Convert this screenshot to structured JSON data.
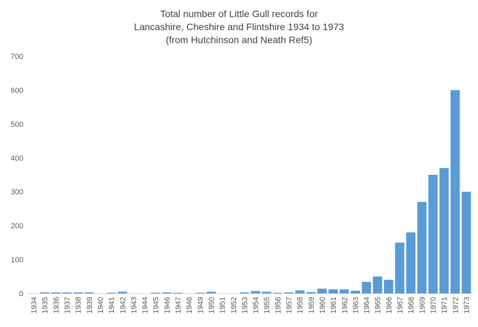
{
  "chart_data": {
    "type": "bar",
    "title_lines": [
      "Total number of Little Gull records for",
      "Lancashire, Cheshire and Flintshire 1934 to 1973",
      "(from Hutchinson and Neath Ref5)"
    ],
    "xlabel": "",
    "ylabel": "",
    "ylim": [
      0,
      700
    ],
    "yticks": [
      0,
      100,
      200,
      300,
      400,
      500,
      600,
      700
    ],
    "grid": false,
    "legend": "none",
    "bar_color": "#5b9bd5",
    "categories": [
      "1934",
      "1935",
      "1936",
      "1937",
      "1938",
      "1939",
      "1940",
      "1941",
      "1942",
      "1943",
      "1944",
      "1945",
      "1946",
      "1947",
      "1948",
      "1949",
      "1950",
      "1951",
      "1952",
      "1953",
      "1954",
      "1955",
      "1956",
      "1957",
      "1958",
      "1959",
      "1960",
      "1961",
      "1962",
      "1963",
      "1964",
      "1965",
      "1966",
      "1967",
      "1968",
      "1969",
      "1970",
      "1971",
      "1972",
      "1973"
    ],
    "values": [
      0,
      3,
      3,
      3,
      3,
      3,
      0,
      2,
      5,
      0,
      0,
      2,
      3,
      2,
      0,
      2,
      5,
      0,
      0,
      3,
      7,
      5,
      2,
      3,
      9,
      4,
      14,
      12,
      12,
      8,
      34,
      50,
      40,
      150,
      180,
      270,
      350,
      370,
      600,
      300
    ]
  }
}
